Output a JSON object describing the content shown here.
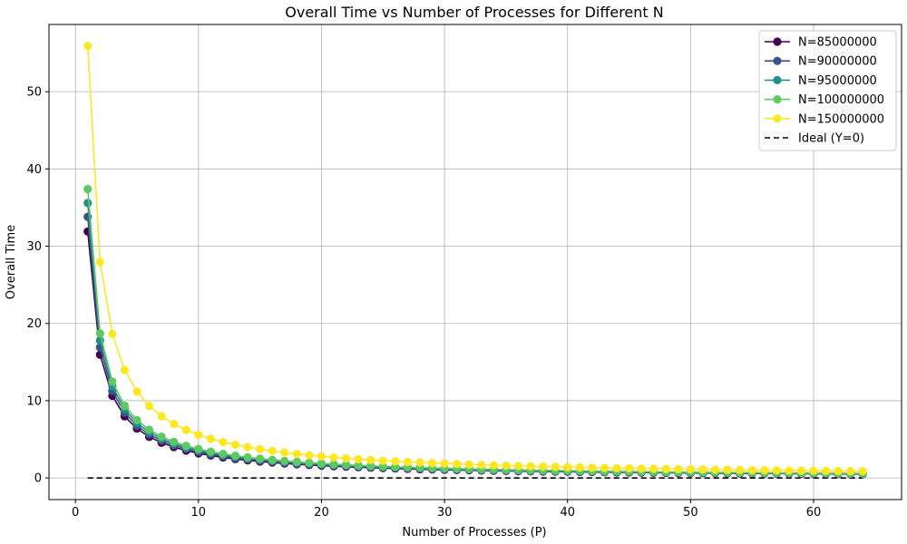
{
  "chart_data": {
    "type": "line",
    "title": "Overall Time vs Number of Processes for Different N",
    "xlabel": "Number of Processes (P)",
    "ylabel": "Overall Time",
    "xlim": [
      -2.15,
      67.15
    ],
    "ylim": [
      -2.8,
      58.7
    ],
    "xticks": [
      0,
      10,
      20,
      30,
      40,
      50,
      60
    ],
    "yticks": [
      0,
      10,
      20,
      30,
      40,
      50
    ],
    "grid": true,
    "legend_position": "top-right",
    "x": [
      1,
      2,
      3,
      4,
      5,
      6,
      7,
      8,
      9,
      10,
      11,
      12,
      13,
      14,
      15,
      16,
      17,
      18,
      19,
      20,
      21,
      22,
      23,
      24,
      25,
      26,
      27,
      28,
      29,
      30,
      31,
      32,
      33,
      34,
      35,
      36,
      37,
      38,
      39,
      40,
      41,
      42,
      43,
      44,
      45,
      46,
      47,
      48,
      49,
      50,
      51,
      52,
      53,
      54,
      55,
      56,
      57,
      58,
      59,
      60,
      61,
      62,
      63,
      64
    ],
    "series": [
      {
        "name": "N=85000000",
        "color": "#440154",
        "t1": 31.9
      },
      {
        "name": "N=90000000",
        "color": "#3b528b",
        "t1": 33.8
      },
      {
        "name": "N=95000000",
        "color": "#21918c",
        "t1": 35.6
      },
      {
        "name": "N=100000000",
        "color": "#5ec962",
        "t1": 37.4
      },
      {
        "name": "N=150000000",
        "color": "#fde725",
        "t1": 55.9
      }
    ],
    "ideal": {
      "name": "Ideal (Y=0)",
      "y": 0,
      "color": "#000000"
    }
  }
}
